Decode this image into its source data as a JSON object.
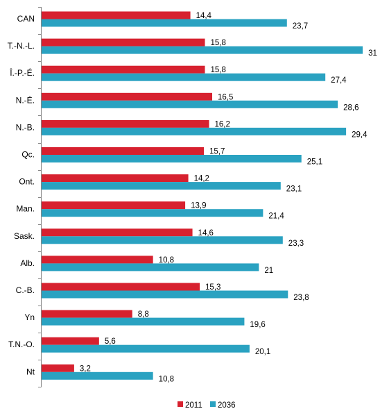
{
  "chart_data": {
    "type": "bar",
    "orientation": "horizontal",
    "categories": [
      "CAN",
      "T.-N.-L.",
      "Î.-P.-É.",
      "N.-É.",
      "N.-B.",
      "Qc.",
      "Ont.",
      "Man.",
      "Sask.",
      "Alb.",
      "C.-B.",
      "Yn",
      "T.N.-O.",
      "Nt"
    ],
    "series": [
      {
        "name": "2011",
        "color": "#d7212f",
        "values": [
          14.4,
          15.8,
          15.8,
          16.5,
          16.2,
          15.7,
          14.2,
          13.9,
          14.6,
          10.8,
          15.3,
          8.8,
          5.6,
          3.2
        ],
        "labels": [
          "14,4",
          "15,8",
          "15,8",
          "16,5",
          "16,2",
          "15,7",
          "14,2",
          "13,9",
          "14,6",
          "10,8",
          "15,3",
          "8,8",
          "5,6",
          "3,2"
        ]
      },
      {
        "name": "2036",
        "color": "#2aa2c1",
        "values": [
          23.7,
          31,
          27.4,
          28.6,
          29.4,
          25.1,
          23.1,
          21.4,
          23.3,
          21,
          23.8,
          19.6,
          20.1,
          10.8
        ],
        "labels": [
          "23,7",
          "31",
          "27,4",
          "28,6",
          "29,4",
          "25,1",
          "23,1",
          "21,4",
          "23,3",
          "21",
          "23,8",
          "19,6",
          "20,1",
          "10,8"
        ]
      }
    ],
    "xlim": [
      0,
      35
    ],
    "grid": false,
    "legend_position": "bottom",
    "axis_color": "#868686"
  }
}
